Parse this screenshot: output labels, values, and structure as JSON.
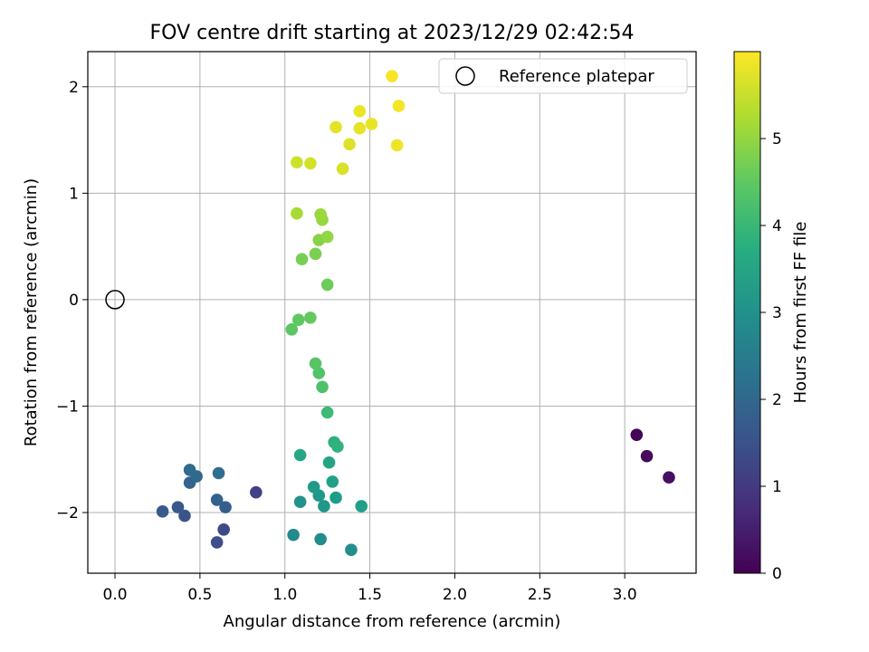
{
  "chart_data": {
    "type": "scatter",
    "title": "FOV centre drift starting at 2023/12/29 02:42:54",
    "xlabel": "Angular distance from reference (arcmin)",
    "ylabel": "Rotation from reference (arcmin)",
    "xlim": [
      -0.16,
      3.42
    ],
    "ylim": [
      -2.57,
      2.33
    ],
    "xticks": [
      0.0,
      0.5,
      1.0,
      1.5,
      2.0,
      2.5,
      3.0
    ],
    "xtick_labels": [
      "0.0",
      "0.5",
      "1.0",
      "1.5",
      "2.0",
      "2.5",
      "3.0"
    ],
    "yticks": [
      -2,
      -1,
      0,
      1,
      2
    ],
    "ytick_labels": [
      "−2",
      "−1",
      "0",
      "1",
      "2"
    ],
    "grid": true,
    "legend": {
      "position": "upper-right",
      "label": "Reference platepar"
    },
    "reference_point": {
      "x": 0.0,
      "y": 0.0
    },
    "colorbar": {
      "label": "Hours from first FF file",
      "colormap": "viridis",
      "range": [
        0,
        6
      ],
      "ticks": [
        0,
        1,
        2,
        3,
        4,
        5
      ],
      "tick_labels": [
        "0",
        "1",
        "2",
        "3",
        "4",
        "5"
      ]
    },
    "points": [
      {
        "x": 3.07,
        "y": -1.27,
        "hours": 0.05
      },
      {
        "x": 3.13,
        "y": -1.47,
        "hours": 0.15
      },
      {
        "x": 3.26,
        "y": -1.67,
        "hours": 0.25
      },
      {
        "x": 0.83,
        "y": -1.81,
        "hours": 1.15
      },
      {
        "x": 0.64,
        "y": -2.16,
        "hours": 1.35
      },
      {
        "x": 0.6,
        "y": -2.28,
        "hours": 1.45
      },
      {
        "x": 0.41,
        "y": -2.03,
        "hours": 1.55
      },
      {
        "x": 0.37,
        "y": -1.95,
        "hours": 1.62
      },
      {
        "x": 0.28,
        "y": -1.99,
        "hours": 1.7
      },
      {
        "x": 0.65,
        "y": -1.95,
        "hours": 1.78
      },
      {
        "x": 0.6,
        "y": -1.88,
        "hours": 1.85
      },
      {
        "x": 0.44,
        "y": -1.72,
        "hours": 1.92
      },
      {
        "x": 0.48,
        "y": -1.66,
        "hours": 2.0
      },
      {
        "x": 0.44,
        "y": -1.6,
        "hours": 2.08
      },
      {
        "x": 0.61,
        "y": -1.63,
        "hours": 2.15
      },
      {
        "x": 1.05,
        "y": -2.21,
        "hours": 2.85
      },
      {
        "x": 1.21,
        "y": -2.25,
        "hours": 2.9
      },
      {
        "x": 1.39,
        "y": -2.35,
        "hours": 2.95
      },
      {
        "x": 1.09,
        "y": -1.9,
        "hours": 3.05
      },
      {
        "x": 1.23,
        "y": -1.94,
        "hours": 3.15
      },
      {
        "x": 1.2,
        "y": -1.84,
        "hours": 3.2
      },
      {
        "x": 1.17,
        "y": -1.76,
        "hours": 3.25
      },
      {
        "x": 1.3,
        "y": -1.86,
        "hours": 3.3
      },
      {
        "x": 1.45,
        "y": -1.94,
        "hours": 3.35
      },
      {
        "x": 1.28,
        "y": -1.71,
        "hours": 3.4
      },
      {
        "x": 1.26,
        "y": -1.53,
        "hours": 3.5
      },
      {
        "x": 1.09,
        "y": -1.46,
        "hours": 3.55
      },
      {
        "x": 1.29,
        "y": -1.34,
        "hours": 3.8
      },
      {
        "x": 1.31,
        "y": -1.38,
        "hours": 3.85
      },
      {
        "x": 1.25,
        "y": -1.06,
        "hours": 4.1
      },
      {
        "x": 1.22,
        "y": -0.82,
        "hours": 4.3
      },
      {
        "x": 1.2,
        "y": -0.69,
        "hours": 4.35
      },
      {
        "x": 1.18,
        "y": -0.6,
        "hours": 4.4
      },
      {
        "x": 1.04,
        "y": -0.28,
        "hours": 4.45
      },
      {
        "x": 1.08,
        "y": -0.19,
        "hours": 4.5
      },
      {
        "x": 1.15,
        "y": -0.17,
        "hours": 4.55
      },
      {
        "x": 1.25,
        "y": 0.14,
        "hours": 4.65
      },
      {
        "x": 1.1,
        "y": 0.38,
        "hours": 4.75
      },
      {
        "x": 1.18,
        "y": 0.43,
        "hours": 4.8
      },
      {
        "x": 1.2,
        "y": 0.56,
        "hours": 4.9
      },
      {
        "x": 1.25,
        "y": 0.59,
        "hours": 5.0
      },
      {
        "x": 1.22,
        "y": 0.75,
        "hours": 5.05
      },
      {
        "x": 1.21,
        "y": 0.8,
        "hours": 5.1
      },
      {
        "x": 1.07,
        "y": 0.81,
        "hours": 5.2
      },
      {
        "x": 1.07,
        "y": 1.29,
        "hours": 5.55
      },
      {
        "x": 1.15,
        "y": 1.28,
        "hours": 5.6
      },
      {
        "x": 1.34,
        "y": 1.23,
        "hours": 5.65
      },
      {
        "x": 1.38,
        "y": 1.46,
        "hours": 5.7
      },
      {
        "x": 1.3,
        "y": 1.62,
        "hours": 5.75
      },
      {
        "x": 1.44,
        "y": 1.61,
        "hours": 5.78
      },
      {
        "x": 1.51,
        "y": 1.65,
        "hours": 5.8
      },
      {
        "x": 1.44,
        "y": 1.77,
        "hours": 5.83
      },
      {
        "x": 1.66,
        "y": 1.45,
        "hours": 5.86
      },
      {
        "x": 1.67,
        "y": 1.82,
        "hours": 5.9
      },
      {
        "x": 1.63,
        "y": 2.1,
        "hours": 5.95
      }
    ]
  }
}
